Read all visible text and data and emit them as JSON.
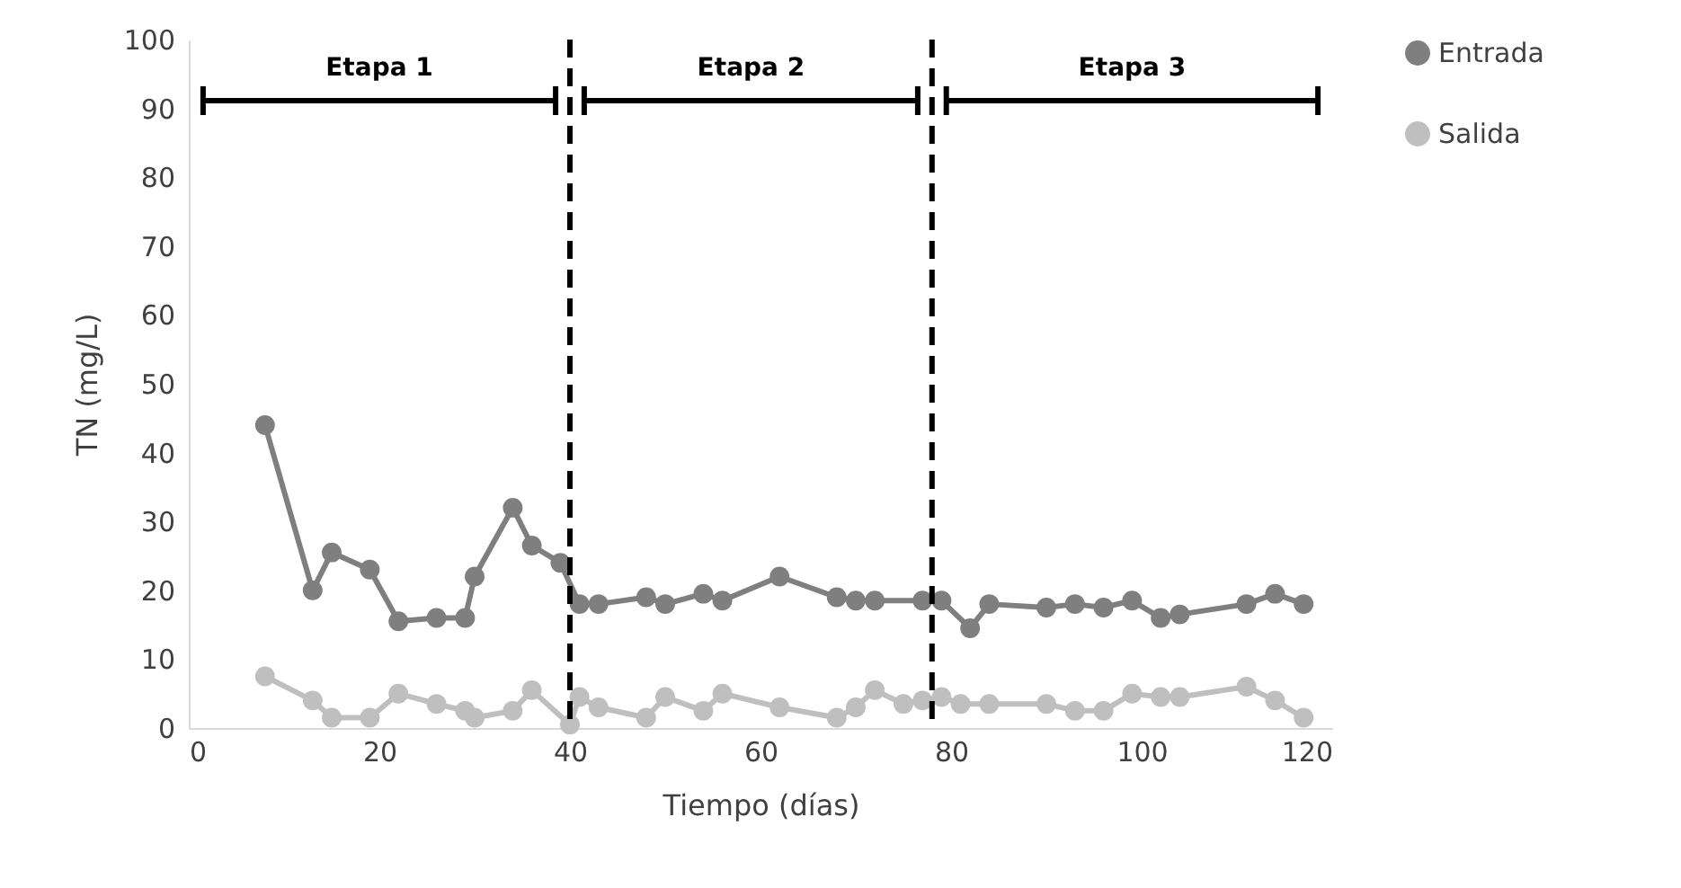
{
  "chart_data": {
    "type": "line",
    "xlabel": "Tiempo (días)",
    "ylabel": "TN (mg/L)",
    "xlim": [
      0,
      120
    ],
    "xticks": [
      0,
      20,
      40,
      60,
      80,
      100,
      120
    ],
    "ylim": [
      0,
      100
    ],
    "yticks": [
      0,
      10,
      20,
      30,
      40,
      50,
      60,
      70,
      80,
      90,
      100
    ],
    "grid": false,
    "legend": "right",
    "marker": "circle",
    "line_style": "solid",
    "series": [
      {
        "name": "Entrada",
        "color": "#7f7f7f",
        "x": [
          8,
          13,
          15,
          19,
          22,
          26,
          29,
          30,
          34,
          36,
          39,
          41,
          43,
          48,
          50,
          54,
          56,
          62,
          68,
          70,
          72,
          77,
          79,
          82,
          84,
          90,
          93,
          96,
          99,
          102,
          104,
          111,
          114,
          117
        ],
        "values": [
          44,
          20,
          25.5,
          23,
          15.5,
          16,
          16,
          22,
          32,
          26.5,
          24,
          18,
          18,
          19,
          18,
          19.5,
          18.5,
          22,
          19,
          18.5,
          18.5,
          18.5,
          18.5,
          14.5,
          18,
          17.5,
          18,
          17.5,
          18.5,
          16,
          16.5,
          18,
          19.5,
          18
        ]
      },
      {
        "name": "Salida",
        "color": "#bfbfbf",
        "x": [
          8,
          13,
          15,
          19,
          22,
          26,
          29,
          30,
          34,
          36,
          40,
          41,
          43,
          48,
          50,
          54,
          56,
          62,
          68,
          70,
          72,
          75,
          77,
          79,
          81,
          84,
          90,
          93,
          96,
          99,
          102,
          104,
          111,
          114,
          117
        ],
        "values": [
          7.5,
          4,
          1.5,
          1.5,
          5,
          3.5,
          2.5,
          1.5,
          2.5,
          5.5,
          0.5,
          4.5,
          3,
          1.5,
          4.5,
          2.5,
          5,
          3,
          1.5,
          3,
          5.5,
          3.5,
          4,
          4.5,
          3.5,
          3.5,
          3.5,
          2.5,
          2.5,
          5,
          4.5,
          4.5,
          6,
          4,
          1.5
        ]
      }
    ],
    "ref_lines": [
      {
        "axis": "x",
        "value": 40,
        "color": "#000000",
        "line_style": "dashed"
      },
      {
        "axis": "x",
        "value": 78,
        "color": "#000000",
        "line_style": "dashed"
      }
    ],
    "annotations": [
      "Etapa 1",
      "Etapa 2",
      "Etapa 3"
    ]
  }
}
